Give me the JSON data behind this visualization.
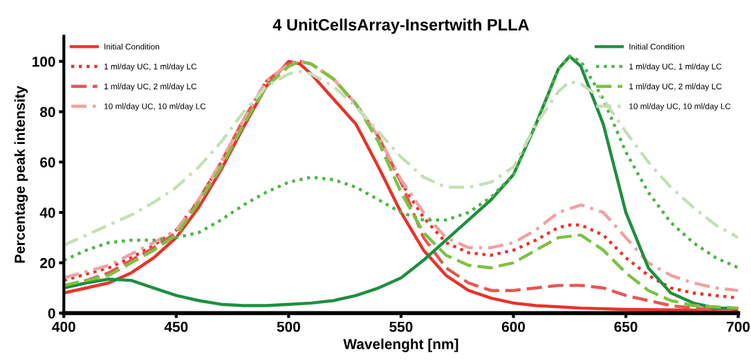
{
  "chart_data": {
    "type": "line",
    "title": "4 UnitCellsArray-Insertwith PLLA",
    "xlabel": "Wavelenght [nm]",
    "ylabel": "Percentage peak intensity",
    "xlim": [
      400,
      700
    ],
    "xticks": [
      400,
      450,
      500,
      550,
      600,
      650,
      700
    ],
    "ylim": [
      0,
      110
    ],
    "yticks": [
      0,
      20,
      40,
      60,
      80,
      100
    ],
    "grid": false,
    "legend": [
      "top left",
      "top right"
    ],
    "series": [
      {
        "name": "Initial Condition",
        "color": "#e8332b",
        "line_style": "solid",
        "x": [
          400,
          410,
          420,
          430,
          440,
          450,
          460,
          470,
          480,
          490,
          500,
          505,
          510,
          520,
          530,
          540,
          550,
          560,
          570,
          580,
          590,
          600,
          610,
          620,
          630,
          650,
          700
        ],
        "values": [
          8,
          10,
          12,
          16,
          22,
          30,
          42,
          57,
          74,
          90,
          100,
          99,
          95,
          85,
          75,
          58,
          40,
          25,
          15,
          9,
          6,
          4,
          3,
          2.5,
          2,
          1.5,
          1
        ]
      },
      {
        "name": "1 ml/day UC, 1 ml/day LC",
        "color": "#e8332b",
        "line_style": "dotted",
        "x": [
          400,
          420,
          430,
          440,
          450,
          460,
          470,
          480,
          490,
          500,
          505,
          510,
          520,
          530,
          540,
          550,
          560,
          570,
          580,
          590,
          600,
          610,
          620,
          625,
          630,
          640,
          650,
          660,
          670,
          680,
          690,
          700
        ],
        "values": [
          13,
          18,
          22,
          27,
          33,
          45,
          60,
          77,
          92,
          99,
          100,
          99,
          93,
          83,
          70,
          52,
          38,
          28,
          24,
          23,
          25,
          29,
          34,
          35,
          35,
          31,
          22,
          15,
          10,
          8,
          7,
          6
        ]
      },
      {
        "name": "1 ml/day UC, 2 ml/day LC",
        "color": "#e85550",
        "line_style": "dashed",
        "x": [
          400,
          420,
          430,
          440,
          450,
          460,
          470,
          480,
          490,
          500,
          505,
          510,
          520,
          530,
          540,
          550,
          560,
          570,
          580,
          590,
          600,
          610,
          620,
          630,
          640,
          650,
          660,
          670,
          680,
          700
        ],
        "values": [
          10,
          16,
          21,
          26,
          32,
          45,
          60,
          77,
          92,
          99,
          100,
          99,
          93,
          83,
          70,
          52,
          30,
          18,
          12,
          9,
          9,
          10,
          11,
          11,
          10,
          7,
          5,
          3,
          2,
          1
        ]
      },
      {
        "name": "10 ml/day UC, 10 ml/day LC",
        "color": "#f2a0a0",
        "line_style": "dashdot",
        "x": [
          400,
          420,
          440,
          450,
          460,
          470,
          480,
          490,
          500,
          505,
          510,
          520,
          530,
          540,
          550,
          560,
          570,
          580,
          590,
          600,
          610,
          620,
          630,
          640,
          650,
          660,
          670,
          680,
          690,
          700
        ],
        "values": [
          14,
          19,
          28,
          33,
          45,
          60,
          77,
          92,
          99,
          100,
          99,
          93,
          83,
          70,
          53,
          40,
          30,
          26,
          26,
          28,
          33,
          40,
          43,
          40,
          30,
          20,
          15,
          12,
          10,
          9
        ]
      },
      {
        "name": "Initial Condition",
        "color": "#1e8f3e",
        "line_style": "solid",
        "x": [
          400,
          410,
          420,
          430,
          440,
          450,
          460,
          470,
          480,
          490,
          500,
          510,
          520,
          530,
          540,
          550,
          560,
          570,
          580,
          590,
          600,
          610,
          620,
          625,
          630,
          640,
          650,
          660,
          670,
          680,
          690,
          700
        ],
        "values": [
          10,
          12,
          13.5,
          13,
          10,
          7,
          5,
          3.5,
          3,
          3,
          3.5,
          4,
          5,
          7,
          10,
          14,
          21,
          29,
          37,
          45,
          55,
          75,
          97,
          102,
          98,
          75,
          40,
          18,
          8,
          4,
          2,
          2
        ]
      },
      {
        "name": "1 ml/day UC, 1 ml/day LC",
        "color": "#4fb548",
        "line_style": "dotted",
        "x": [
          400,
          410,
          420,
          430,
          440,
          450,
          460,
          470,
          480,
          490,
          500,
          510,
          520,
          530,
          540,
          550,
          560,
          570,
          580,
          590,
          600,
          610,
          620,
          625,
          630,
          640,
          650,
          660,
          670,
          680,
          690,
          700
        ],
        "values": [
          21,
          25,
          28,
          29,
          29,
          30,
          32,
          37,
          43,
          48,
          52,
          54,
          53,
          50,
          45,
          40,
          37,
          37,
          40,
          46,
          55,
          75,
          97,
          102,
          100,
          85,
          64,
          48,
          36,
          28,
          22,
          18
        ]
      },
      {
        "name": "1 ml/day UC, 2 ml/day LC",
        "color": "#7cc242",
        "line_style": "dashed",
        "x": [
          400,
          420,
          440,
          450,
          460,
          470,
          480,
          490,
          500,
          505,
          510,
          520,
          530,
          540,
          550,
          560,
          570,
          580,
          590,
          600,
          610,
          620,
          630,
          640,
          650,
          660,
          670,
          680,
          700
        ],
        "values": [
          11,
          15,
          25,
          31,
          44,
          58,
          75,
          90,
          98,
          100,
          99,
          93,
          83,
          68,
          48,
          32,
          23,
          19,
          18,
          20,
          25,
          30,
          31,
          25,
          16,
          9,
          5,
          3,
          2
        ]
      },
      {
        "name": "10 ml/day UC, 10 ml/day LC",
        "color": "#c5dfb5",
        "line_style": "dashdot",
        "x": [
          400,
          410,
          420,
          430,
          440,
          450,
          460,
          470,
          480,
          490,
          500,
          505,
          510,
          520,
          530,
          540,
          550,
          560,
          570,
          580,
          590,
          600,
          610,
          620,
          625,
          630,
          640,
          650,
          660,
          670,
          680,
          690,
          700
        ],
        "values": [
          27,
          31,
          35,
          39,
          44,
          50,
          58,
          68,
          80,
          90,
          95,
          96,
          95,
          90,
          82,
          72,
          62,
          54,
          50,
          50,
          52,
          58,
          75,
          88,
          92,
          91,
          85,
          72,
          60,
          50,
          42,
          35,
          30
        ]
      }
    ]
  }
}
